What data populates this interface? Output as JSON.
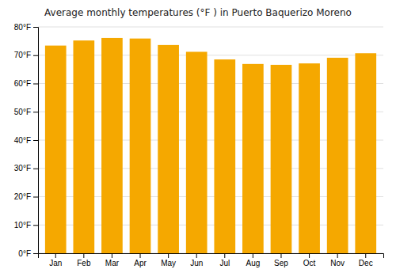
{
  "chart_data": {
    "type": "bar",
    "title": "Average monthly temperatures (°F ) in Puerto Baquerizo Moreno",
    "categories": [
      "Jan",
      "Feb",
      "Mar",
      "Apr",
      "May",
      "Jun",
      "Jul",
      "Aug",
      "Sep",
      "Oct",
      "Nov",
      "Dec"
    ],
    "values": [
      73.4,
      75.2,
      76.1,
      75.9,
      73.6,
      71.2,
      68.5,
      66.9,
      66.6,
      67.1,
      69.1,
      70.7
    ],
    "color": "#F5A800",
    "ylim": [
      0,
      80
    ],
    "yticks": [
      {
        "value": 0,
        "label": "0°F"
      },
      {
        "value": 10,
        "label": "10°F"
      },
      {
        "value": 20,
        "label": "20°F"
      },
      {
        "value": 30,
        "label": "30°F"
      },
      {
        "value": 40,
        "label": "40°F"
      },
      {
        "value": 50,
        "label": "50°F"
      },
      {
        "value": 60,
        "label": "60°F"
      },
      {
        "value": 70,
        "label": "70°F"
      },
      {
        "value": 80,
        "label": "80°F"
      }
    ],
    "grid": true
  }
}
